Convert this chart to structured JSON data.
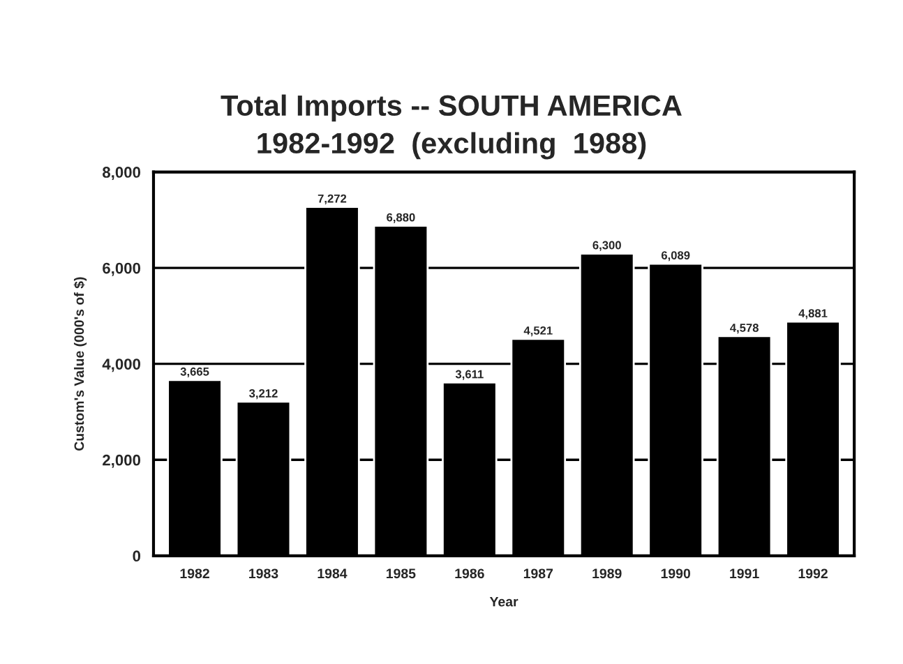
{
  "chart_data": {
    "type": "bar",
    "title": "Total Imports -- SOUTH AMERICA\n1982-1992  (excluding  1988)",
    "xlabel": "Year",
    "ylabel": "Custom's Value (000's of $)",
    "categories": [
      "1982",
      "1983",
      "1984",
      "1985",
      "1986",
      "1987",
      "1989",
      "1990",
      "1991",
      "1992"
    ],
    "values": [
      3665,
      3212,
      7272,
      6880,
      3611,
      4521,
      6300,
      6089,
      4578,
      4881
    ],
    "color": "#000000",
    "ylim": [
      0,
      8000
    ],
    "yticks": [
      0,
      {
        "value": 2000,
        "label": "2,000"
      },
      {
        "value": 4000,
        "label": "4,000"
      },
      {
        "value": 6000,
        "label": "6,000"
      },
      {
        "value": 8000,
        "label": "8,000"
      }
    ],
    "value_labels": [
      "3,665",
      "3,212",
      "7,272",
      "6,880",
      "3,611",
      "4,521",
      "6,300",
      "6,089",
      "4,578",
      "4,881"
    ],
    "grid": "y"
  }
}
